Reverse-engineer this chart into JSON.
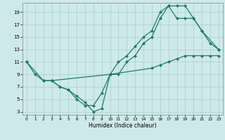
{
  "xlabel": "Humidex (Indice chaleur)",
  "bg_color": "#cee9e9",
  "grid_color": "#a8cfcf",
  "line_color": "#1e7b6e",
  "xlim": [
    -0.5,
    23.5
  ],
  "ylim": [
    2.5,
    20.5
  ],
  "xticks": [
    0,
    1,
    2,
    3,
    4,
    5,
    6,
    7,
    8,
    9,
    10,
    11,
    12,
    13,
    14,
    15,
    16,
    17,
    18,
    19,
    20,
    21,
    22,
    23
  ],
  "yticks": [
    3,
    5,
    7,
    9,
    11,
    13,
    15,
    17,
    19
  ],
  "line1_x": [
    0,
    1,
    2,
    3,
    4,
    5,
    6,
    7,
    8,
    9,
    10,
    11,
    12,
    13,
    14,
    15,
    16,
    17,
    18,
    19,
    20,
    21,
    22,
    23
  ],
  "line1_y": [
    11,
    9,
    8,
    8,
    7,
    6.5,
    5.5,
    4.5,
    3,
    3.5,
    9,
    9,
    11,
    12,
    14,
    15,
    18,
    20,
    20,
    20,
    18,
    16,
    14,
    13
  ],
  "line2_x": [
    0,
    2,
    3,
    4,
    5,
    6,
    7,
    8,
    9,
    10,
    11,
    12,
    13,
    14,
    15,
    16,
    17,
    18,
    19,
    20,
    21,
    23
  ],
  "line2_y": [
    11,
    8,
    8,
    7,
    6.5,
    5,
    4,
    4,
    6,
    9,
    11,
    12,
    13.5,
    15,
    16,
    19,
    20,
    18,
    18,
    18,
    16,
    13
  ],
  "line3_x": [
    3,
    10,
    15,
    16,
    17,
    18,
    19,
    20,
    21,
    22,
    23
  ],
  "line3_y": [
    8,
    9,
    10,
    10.5,
    11,
    11.5,
    12,
    12,
    12,
    12,
    12
  ]
}
